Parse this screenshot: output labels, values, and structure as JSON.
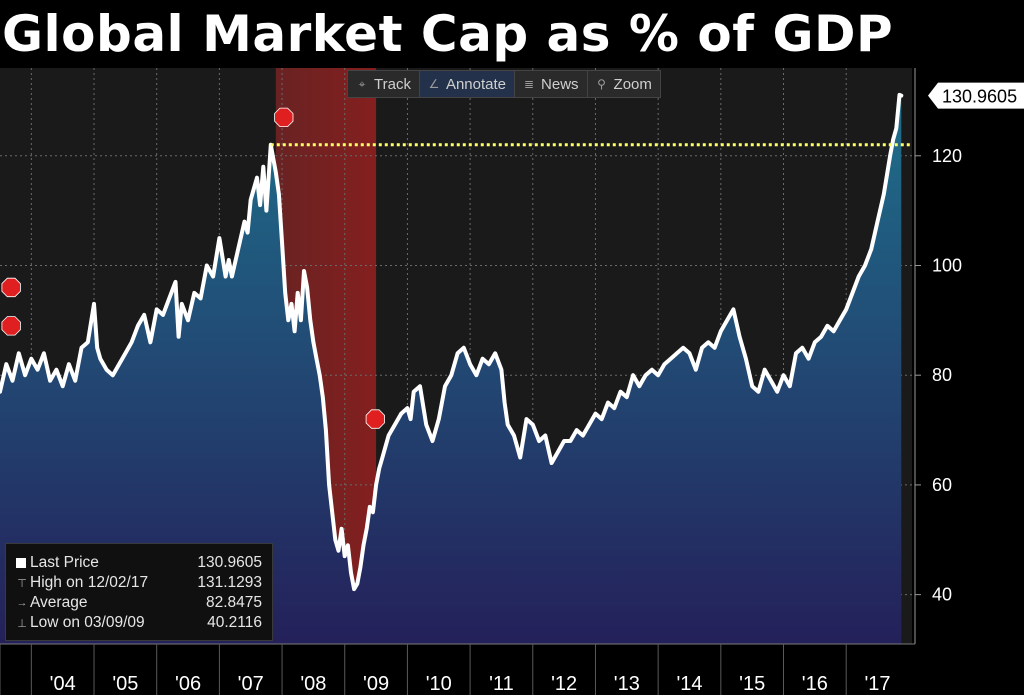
{
  "title": "Global Market Cap as % of GDP",
  "toolbar": {
    "items": [
      {
        "label": "Track",
        "icon": "crosshair-icon"
      },
      {
        "label": "Annotate",
        "icon": "pencil-icon"
      },
      {
        "label": "News",
        "icon": "news-icon"
      },
      {
        "label": "Zoom",
        "icon": "magnifier-icon"
      }
    ]
  },
  "legend": {
    "last_label": "Last Price",
    "last_value": "130.9605",
    "high_label": "High on 12/02/17",
    "high_value": "131.1293",
    "avg_label": "Average",
    "avg_value": "82.8475",
    "low_label": "Low on 03/09/09",
    "low_value": "40.2116"
  },
  "chart_data": {
    "type": "area",
    "title": "Global Market Cap as % of GDP",
    "x_tick_labels": [
      "'04",
      "'05",
      "'06",
      "'07",
      "'08",
      "'09",
      "'10",
      "'11",
      "'12",
      "'13",
      "'14",
      "'15",
      "'16",
      "'17"
    ],
    "y_ticks": [
      40,
      60,
      80,
      100,
      120
    ],
    "ylim": [
      31,
      136
    ],
    "xlim": [
      2003.5,
      2018.05
    ],
    "grid": true,
    "last_value_label": "130.9605",
    "reference_line": {
      "value": 122,
      "color": "#ffff66"
    },
    "recession_shading": {
      "start": 2007.9,
      "end": 2009.5,
      "color": "#7a1f1f"
    },
    "rec_markers": [
      {
        "x": 2003.55,
        "y": 96
      },
      {
        "x": 2003.55,
        "y": 89
      },
      {
        "x": 2007.9,
        "y": 127
      },
      {
        "x": 2009.36,
        "y": 72
      }
    ],
    "colors": {
      "line": "#ffffff",
      "area_top": "#1f6f8b",
      "area_bottom": "#24205a",
      "background": "#1c1c1c"
    },
    "series": [
      {
        "points": [
          [
            2003.5,
            77
          ],
          [
            2003.6,
            82
          ],
          [
            2003.7,
            79
          ],
          [
            2003.8,
            84
          ],
          [
            2003.9,
            80
          ],
          [
            2004.0,
            83
          ],
          [
            2004.1,
            81
          ],
          [
            2004.2,
            84
          ],
          [
            2004.3,
            79
          ],
          [
            2004.4,
            81
          ],
          [
            2004.5,
            78
          ],
          [
            2004.6,
            82
          ],
          [
            2004.7,
            79
          ],
          [
            2004.8,
            85
          ],
          [
            2004.9,
            86
          ],
          [
            2005.0,
            93
          ],
          [
            2005.05,
            85
          ],
          [
            2005.1,
            83
          ],
          [
            2005.2,
            81
          ],
          [
            2005.3,
            80
          ],
          [
            2005.4,
            82
          ],
          [
            2005.5,
            84
          ],
          [
            2005.6,
            86
          ],
          [
            2005.7,
            89
          ],
          [
            2005.8,
            91
          ],
          [
            2005.9,
            86
          ],
          [
            2006.0,
            92
          ],
          [
            2006.1,
            91
          ],
          [
            2006.2,
            94
          ],
          [
            2006.3,
            97
          ],
          [
            2006.35,
            87
          ],
          [
            2006.4,
            93
          ],
          [
            2006.5,
            90
          ],
          [
            2006.6,
            95
          ],
          [
            2006.7,
            94
          ],
          [
            2006.8,
            100
          ],
          [
            2006.9,
            98
          ],
          [
            2007.0,
            105
          ],
          [
            2007.1,
            98
          ],
          [
            2007.15,
            101
          ],
          [
            2007.2,
            98
          ],
          [
            2007.3,
            103
          ],
          [
            2007.4,
            108
          ],
          [
            2007.45,
            106
          ],
          [
            2007.5,
            112
          ],
          [
            2007.6,
            116
          ],
          [
            2007.65,
            111
          ],
          [
            2007.7,
            118
          ],
          [
            2007.75,
            110
          ],
          [
            2007.82,
            122
          ],
          [
            2007.9,
            117
          ],
          [
            2007.95,
            113
          ],
          [
            2008.0,
            104
          ],
          [
            2008.05,
            95
          ],
          [
            2008.1,
            90
          ],
          [
            2008.15,
            93
          ],
          [
            2008.2,
            88
          ],
          [
            2008.25,
            95
          ],
          [
            2008.3,
            90
          ],
          [
            2008.35,
            99
          ],
          [
            2008.4,
            96
          ],
          [
            2008.45,
            90
          ],
          [
            2008.5,
            86
          ],
          [
            2008.55,
            83
          ],
          [
            2008.6,
            80
          ],
          [
            2008.65,
            76
          ],
          [
            2008.7,
            70
          ],
          [
            2008.75,
            60
          ],
          [
            2008.8,
            55
          ],
          [
            2008.85,
            50
          ],
          [
            2008.9,
            48
          ],
          [
            2008.95,
            52
          ],
          [
            2009.0,
            47
          ],
          [
            2009.05,
            49
          ],
          [
            2009.1,
            44
          ],
          [
            2009.15,
            41
          ],
          [
            2009.2,
            42
          ],
          [
            2009.25,
            45
          ],
          [
            2009.3,
            49
          ],
          [
            2009.35,
            52
          ],
          [
            2009.4,
            56
          ],
          [
            2009.45,
            55
          ],
          [
            2009.5,
            60
          ],
          [
            2009.55,
            63
          ],
          [
            2009.6,
            65
          ],
          [
            2009.7,
            69
          ],
          [
            2009.8,
            71
          ],
          [
            2009.9,
            73
          ],
          [
            2010.0,
            74
          ],
          [
            2010.05,
            72
          ],
          [
            2010.1,
            77
          ],
          [
            2010.2,
            78
          ],
          [
            2010.3,
            71
          ],
          [
            2010.4,
            68
          ],
          [
            2010.5,
            72
          ],
          [
            2010.6,
            78
          ],
          [
            2010.7,
            80
          ],
          [
            2010.8,
            84
          ],
          [
            2010.9,
            85
          ],
          [
            2011.0,
            82
          ],
          [
            2011.1,
            80
          ],
          [
            2011.2,
            83
          ],
          [
            2011.3,
            82
          ],
          [
            2011.4,
            84
          ],
          [
            2011.5,
            81
          ],
          [
            2011.55,
            75
          ],
          [
            2011.6,
            71
          ],
          [
            2011.7,
            69
          ],
          [
            2011.8,
            65
          ],
          [
            2011.9,
            72
          ],
          [
            2012.0,
            71
          ],
          [
            2012.1,
            68
          ],
          [
            2012.2,
            69
          ],
          [
            2012.3,
            64
          ],
          [
            2012.4,
            66
          ],
          [
            2012.5,
            68
          ],
          [
            2012.6,
            68
          ],
          [
            2012.7,
            70
          ],
          [
            2012.8,
            69
          ],
          [
            2012.9,
            71
          ],
          [
            2013.0,
            73
          ],
          [
            2013.1,
            72
          ],
          [
            2013.2,
            75
          ],
          [
            2013.3,
            74
          ],
          [
            2013.4,
            77
          ],
          [
            2013.5,
            76
          ],
          [
            2013.6,
            80
          ],
          [
            2013.7,
            78
          ],
          [
            2013.8,
            80
          ],
          [
            2013.9,
            81
          ],
          [
            2014.0,
            80
          ],
          [
            2014.1,
            82
          ],
          [
            2014.2,
            83
          ],
          [
            2014.3,
            84
          ],
          [
            2014.4,
            85
          ],
          [
            2014.5,
            84
          ],
          [
            2014.6,
            81
          ],
          [
            2014.7,
            85
          ],
          [
            2014.8,
            86
          ],
          [
            2014.9,
            85
          ],
          [
            2015.0,
            88
          ],
          [
            2015.1,
            90
          ],
          [
            2015.2,
            92
          ],
          [
            2015.3,
            87
          ],
          [
            2015.4,
            83
          ],
          [
            2015.5,
            78
          ],
          [
            2015.6,
            77
          ],
          [
            2015.7,
            81
          ],
          [
            2015.8,
            79
          ],
          [
            2015.9,
            77
          ],
          [
            2016.0,
            80
          ],
          [
            2016.1,
            78
          ],
          [
            2016.2,
            84
          ],
          [
            2016.3,
            85
          ],
          [
            2016.4,
            83
          ],
          [
            2016.5,
            86
          ],
          [
            2016.6,
            87
          ],
          [
            2016.7,
            89
          ],
          [
            2016.8,
            88
          ],
          [
            2016.9,
            90
          ],
          [
            2017.0,
            92
          ],
          [
            2017.1,
            95
          ],
          [
            2017.2,
            98
          ],
          [
            2017.3,
            100
          ],
          [
            2017.4,
            103
          ],
          [
            2017.5,
            108
          ],
          [
            2017.6,
            113
          ],
          [
            2017.7,
            120
          ],
          [
            2017.75,
            123
          ],
          [
            2017.8,
            125
          ],
          [
            2017.85,
            131.1
          ],
          [
            2017.88,
            130.96
          ]
        ]
      }
    ]
  }
}
